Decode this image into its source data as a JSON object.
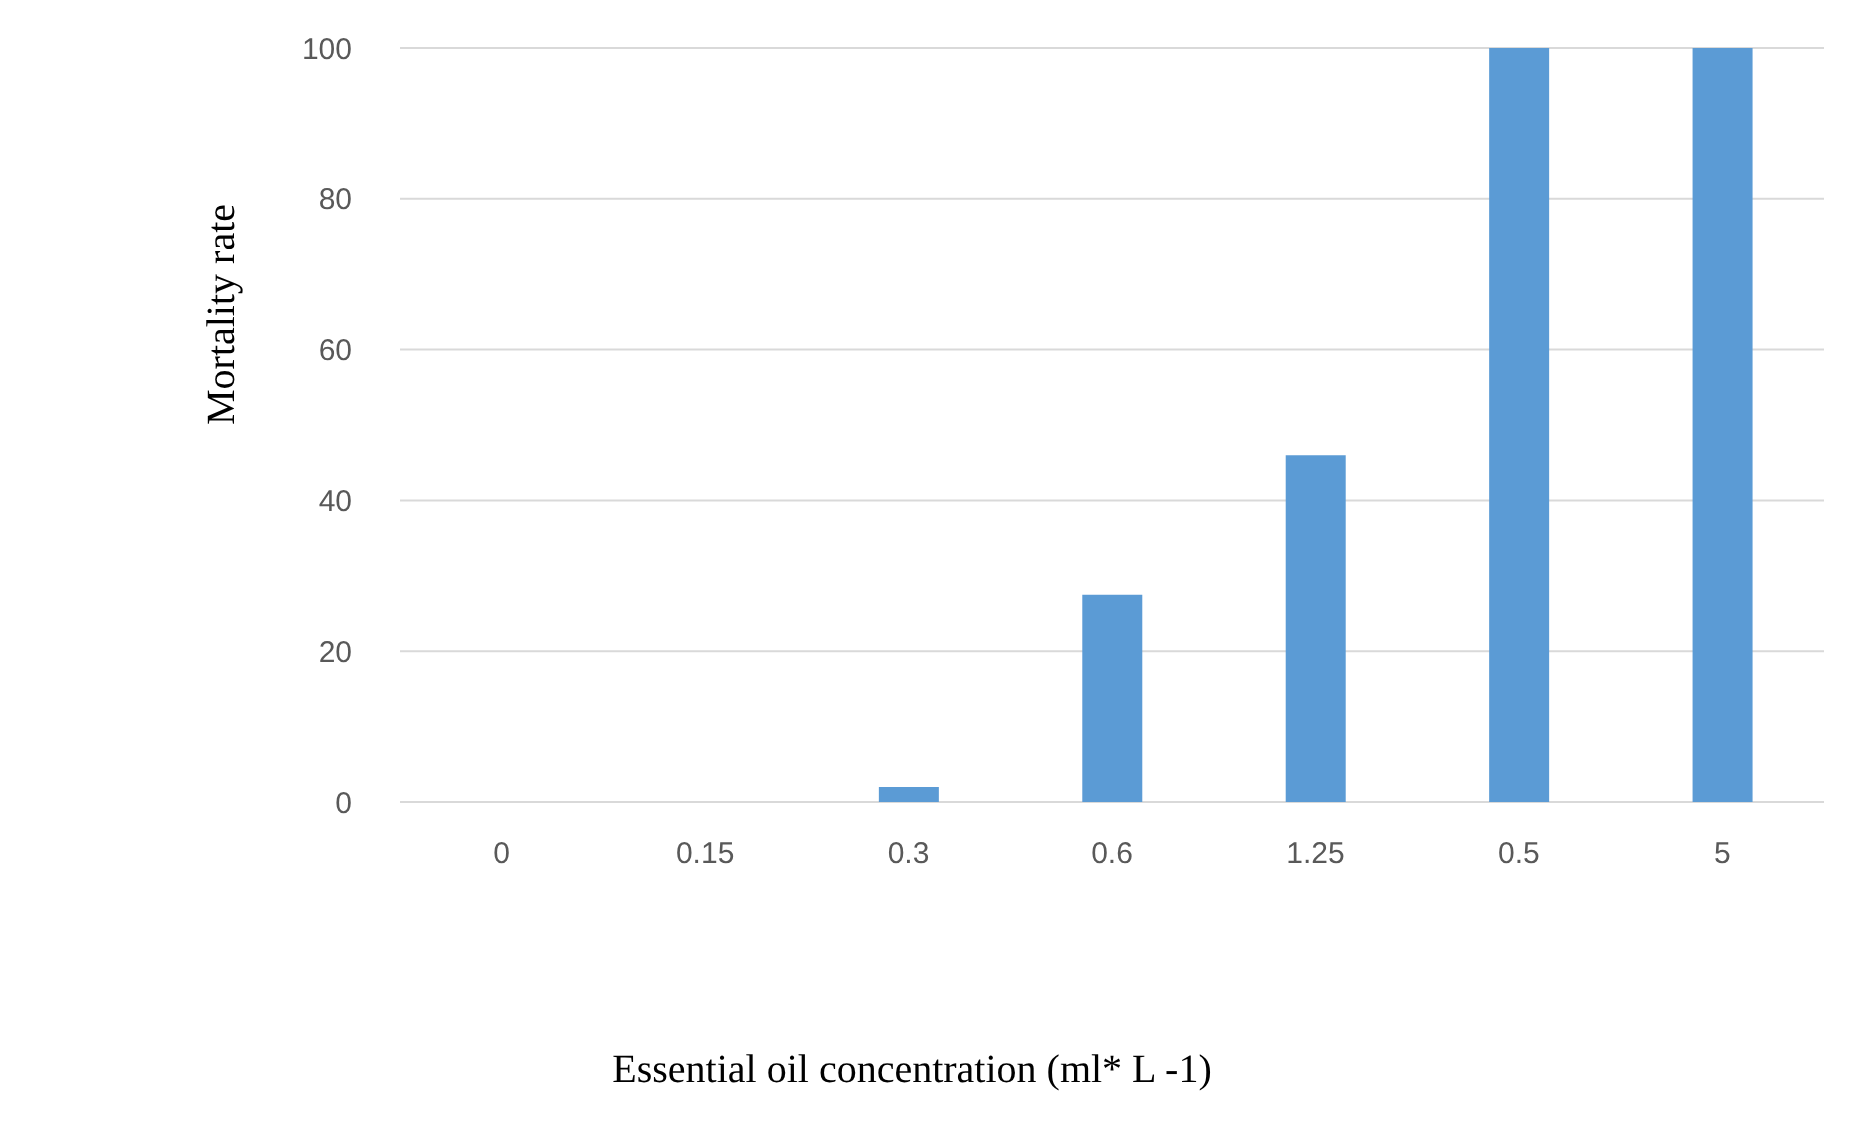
{
  "chart_data": {
    "type": "bar",
    "xlabel": "Essential oil concentration (ml* L -1)",
    "ylabel": "Mortality rate",
    "categories": [
      "0",
      "0.15",
      "0.3",
      "0.6",
      "1.25",
      "0.5",
      "5"
    ],
    "values": [
      0,
      0,
      2,
      27.5,
      46,
      100,
      100
    ],
    "color": "#5b9bd5",
    "ylim": [
      0,
      100
    ],
    "yticks": [
      0,
      20,
      40,
      60,
      80,
      100
    ],
    "grid": "y",
    "legend": false
  }
}
